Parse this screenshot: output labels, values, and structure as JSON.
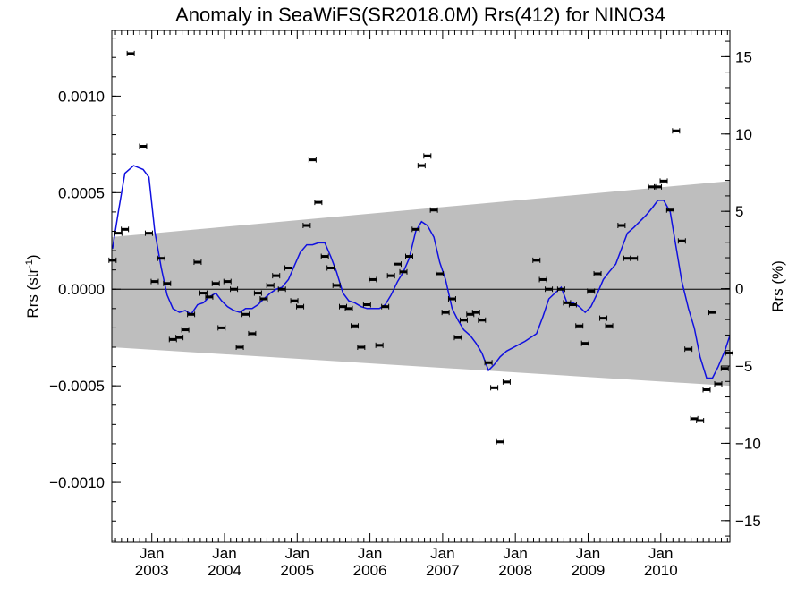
{
  "chart_data": {
    "type": "scatter",
    "title": "Anomaly in SeaWiFS(SR2018.0M) Rrs(412) for NINO34",
    "ylabel": "Rrs (str",
    "ylabel_sup": "-1",
    "ylabel_close": ")",
    "ylabel_right": "Rrs (%)",
    "xlim": [
      2002.45,
      2010.95
    ],
    "ylim": [
      -0.00131,
      0.00134
    ],
    "ylim_right": [
      -16.4,
      16.7
    ],
    "x_ticks": [
      {
        "value": 2003.0,
        "month": "Jan",
        "year": "2003"
      },
      {
        "value": 2004.0,
        "month": "Jan",
        "year": "2004"
      },
      {
        "value": 2005.0,
        "month": "Jan",
        "year": "2005"
      },
      {
        "value": 2006.0,
        "month": "Jan",
        "year": "2006"
      },
      {
        "value": 2007.0,
        "month": "Jan",
        "year": "2007"
      },
      {
        "value": 2008.0,
        "month": "Jan",
        "year": "2008"
      },
      {
        "value": 2009.0,
        "month": "Jan",
        "year": "2009"
      },
      {
        "value": 2010.0,
        "month": "Jan",
        "year": "2010"
      }
    ],
    "y_ticks": [
      {
        "value": 0.001,
        "label": "0.0010"
      },
      {
        "value": 0.0005,
        "label": "0.0005"
      },
      {
        "value": 0.0,
        "label": "0.0000"
      },
      {
        "value": -0.0005,
        "label": "−0.0005"
      },
      {
        "value": -0.001,
        "label": "−0.0010"
      }
    ],
    "y_ticks_right": [
      {
        "value": 15,
        "label": "15"
      },
      {
        "value": 10,
        "label": "10"
      },
      {
        "value": 5,
        "label": "5"
      },
      {
        "value": 0,
        "label": "0"
      },
      {
        "value": -5,
        "label": "−5"
      },
      {
        "value": -10,
        "label": "−10"
      },
      {
        "value": -15,
        "label": "−15"
      }
    ],
    "band": {
      "x": [
        2002.45,
        2010.95
      ],
      "upper": [
        0.00027,
        0.00056
      ],
      "lower": [
        -0.0003,
        -0.0005
      ],
      "color": "#bebebe"
    },
    "zero_line": 0.0,
    "points": [
      [
        2002.46,
        0.00015
      ],
      [
        2002.54,
        0.00029
      ],
      [
        2002.63,
        0.00031
      ],
      [
        2002.71,
        0.00122
      ],
      [
        2002.88,
        0.00074
      ],
      [
        2002.96,
        0.00029
      ],
      [
        2003.04,
        4e-05
      ],
      [
        2003.13,
        0.00016
      ],
      [
        2003.21,
        3e-05
      ],
      [
        2003.29,
        -0.00026
      ],
      [
        2003.38,
        -0.00025
      ],
      [
        2003.46,
        -0.00021
      ],
      [
        2003.54,
        -0.00013
      ],
      [
        2003.63,
        0.00014
      ],
      [
        2003.71,
        -2e-05
      ],
      [
        2003.79,
        -4e-05
      ],
      [
        2003.88,
        3e-05
      ],
      [
        2003.96,
        -0.0002
      ],
      [
        2004.04,
        4e-05
      ],
      [
        2004.13,
        0.0
      ],
      [
        2004.21,
        -0.0003
      ],
      [
        2004.29,
        -0.00013
      ],
      [
        2004.38,
        -0.00023
      ],
      [
        2004.46,
        -2e-05
      ],
      [
        2004.54,
        -5e-05
      ],
      [
        2004.63,
        2e-05
      ],
      [
        2004.71,
        7e-05
      ],
      [
        2004.79,
        0.0
      ],
      [
        2004.88,
        0.00011
      ],
      [
        2004.96,
        -6e-05
      ],
      [
        2005.04,
        -9e-05
      ],
      [
        2005.13,
        0.00033
      ],
      [
        2005.21,
        0.00067
      ],
      [
        2005.29,
        0.00045
      ],
      [
        2005.38,
        0.00017
      ],
      [
        2005.46,
        0.00011
      ],
      [
        2005.54,
        2e-05
      ],
      [
        2005.63,
        -9e-05
      ],
      [
        2005.71,
        -0.0001
      ],
      [
        2005.79,
        -0.00019
      ],
      [
        2005.88,
        -0.0003
      ],
      [
        2005.96,
        -8e-05
      ],
      [
        2006.04,
        5e-05
      ],
      [
        2006.13,
        -0.00029
      ],
      [
        2006.21,
        -9e-05
      ],
      [
        2006.29,
        7e-05
      ],
      [
        2006.38,
        0.00013
      ],
      [
        2006.46,
        9e-05
      ],
      [
        2006.54,
        0.00017
      ],
      [
        2006.63,
        0.00031
      ],
      [
        2006.71,
        0.00064
      ],
      [
        2006.79,
        0.00069
      ],
      [
        2006.88,
        0.00041
      ],
      [
        2006.96,
        8e-05
      ],
      [
        2007.04,
        -0.00012
      ],
      [
        2007.13,
        -5e-05
      ],
      [
        2007.21,
        -0.00025
      ],
      [
        2007.29,
        -0.00016
      ],
      [
        2007.38,
        -0.00013
      ],
      [
        2007.46,
        -0.00012
      ],
      [
        2007.54,
        -0.00016
      ],
      [
        2007.63,
        -0.00038
      ],
      [
        2007.71,
        -0.00051
      ],
      [
        2007.79,
        -0.00079
      ],
      [
        2007.88,
        -0.00048
      ],
      [
        2008.29,
        0.00015
      ],
      [
        2008.38,
        5e-05
      ],
      [
        2008.46,
        0.0
      ],
      [
        2008.63,
        0.0
      ],
      [
        2008.71,
        -7e-05
      ],
      [
        2008.79,
        -8e-05
      ],
      [
        2008.88,
        -0.00019
      ],
      [
        2008.96,
        -0.00028
      ],
      [
        2009.04,
        -1e-05
      ],
      [
        2009.13,
        8e-05
      ],
      [
        2009.21,
        -0.00015
      ],
      [
        2009.29,
        -0.00019
      ],
      [
        2009.46,
        0.00033
      ],
      [
        2009.54,
        0.00016
      ],
      [
        2009.63,
        0.00016
      ],
      [
        2009.88,
        0.00053
      ],
      [
        2009.96,
        0.00053
      ],
      [
        2010.04,
        0.00056
      ],
      [
        2010.13,
        0.00041
      ],
      [
        2010.21,
        0.00082
      ],
      [
        2010.29,
        0.00025
      ],
      [
        2010.38,
        -0.00031
      ],
      [
        2010.46,
        -0.00067
      ],
      [
        2010.54,
        -0.00068
      ],
      [
        2010.63,
        -0.00052
      ],
      [
        2010.71,
        -0.00012
      ],
      [
        2010.79,
        -0.00049
      ],
      [
        2010.88,
        -0.00041
      ],
      [
        2010.94,
        -0.00033
      ]
    ],
    "smooth": {
      "color": "#1010e0",
      "points": [
        [
          2002.46,
          0.00021
        ],
        [
          2002.54,
          0.0004
        ],
        [
          2002.63,
          0.0006
        ],
        [
          2002.75,
          0.00064
        ],
        [
          2002.88,
          0.00062
        ],
        [
          2002.96,
          0.00058
        ],
        [
          2003.04,
          0.0003
        ],
        [
          2003.13,
          0.00011
        ],
        [
          2003.21,
          -3e-05
        ],
        [
          2003.29,
          -0.0001
        ],
        [
          2003.38,
          -0.00012
        ],
        [
          2003.46,
          -0.00011
        ],
        [
          2003.54,
          -0.00013
        ],
        [
          2003.63,
          -8e-05
        ],
        [
          2003.71,
          -7e-05
        ],
        [
          2003.79,
          -4e-05
        ],
        [
          2003.88,
          -2e-05
        ],
        [
          2003.96,
          -6e-05
        ],
        [
          2004.04,
          -9e-05
        ],
        [
          2004.13,
          -0.00011
        ],
        [
          2004.21,
          -0.00012
        ],
        [
          2004.29,
          -0.0001
        ],
        [
          2004.38,
          -0.0001
        ],
        [
          2004.46,
          -8e-05
        ],
        [
          2004.54,
          -5e-05
        ],
        [
          2004.63,
          -2e-05
        ],
        [
          2004.71,
          0.0
        ],
        [
          2004.79,
          1e-05
        ],
        [
          2004.88,
          5e-05
        ],
        [
          2004.96,
          0.00012
        ],
        [
          2005.04,
          0.00019
        ],
        [
          2005.13,
          0.00023
        ],
        [
          2005.21,
          0.00023
        ],
        [
          2005.29,
          0.00024
        ],
        [
          2005.38,
          0.00024
        ],
        [
          2005.46,
          0.00017
        ],
        [
          2005.54,
          9e-05
        ],
        [
          2005.63,
          -2e-05
        ],
        [
          2005.71,
          -6e-05
        ],
        [
          2005.79,
          -7e-05
        ],
        [
          2005.88,
          -9e-05
        ],
        [
          2005.96,
          -0.0001
        ],
        [
          2006.04,
          -0.0001
        ],
        [
          2006.13,
          -0.0001
        ],
        [
          2006.21,
          -8e-05
        ],
        [
          2006.29,
          -3e-05
        ],
        [
          2006.38,
          4e-05
        ],
        [
          2006.46,
          9e-05
        ],
        [
          2006.54,
          0.00016
        ],
        [
          2006.63,
          0.0003
        ],
        [
          2006.71,
          0.00035
        ],
        [
          2006.79,
          0.00033
        ],
        [
          2006.88,
          0.00027
        ],
        [
          2006.96,
          0.00014
        ],
        [
          2007.04,
          5e-05
        ],
        [
          2007.13,
          -0.0001
        ],
        [
          2007.21,
          -0.00016
        ],
        [
          2007.29,
          -0.00021
        ],
        [
          2007.38,
          -0.00024
        ],
        [
          2007.46,
          -0.00028
        ],
        [
          2007.54,
          -0.00033
        ],
        [
          2007.63,
          -0.00042
        ],
        [
          2007.71,
          -0.00039
        ],
        [
          2007.79,
          -0.00035
        ],
        [
          2007.88,
          -0.00032
        ],
        [
          2008.13,
          -0.00027
        ],
        [
          2008.29,
          -0.00023
        ],
        [
          2008.38,
          -0.00014
        ],
        [
          2008.46,
          -5e-05
        ],
        [
          2008.63,
          1e-05
        ],
        [
          2008.71,
          -7e-05
        ],
        [
          2008.79,
          -7e-05
        ],
        [
          2008.88,
          -9e-05
        ],
        [
          2008.96,
          -0.00012
        ],
        [
          2009.04,
          -9e-05
        ],
        [
          2009.13,
          -2e-05
        ],
        [
          2009.21,
          5e-05
        ],
        [
          2009.29,
          9e-05
        ],
        [
          2009.38,
          0.00013
        ],
        [
          2009.46,
          0.00021
        ],
        [
          2009.54,
          0.00029
        ],
        [
          2009.63,
          0.00032
        ],
        [
          2009.71,
          0.00035
        ],
        [
          2009.79,
          0.00038
        ],
        [
          2009.88,
          0.00042
        ],
        [
          2009.96,
          0.00046
        ],
        [
          2010.04,
          0.00046
        ],
        [
          2010.13,
          0.0004
        ],
        [
          2010.21,
          0.00022
        ],
        [
          2010.29,
          4e-05
        ],
        [
          2010.38,
          -0.0001
        ],
        [
          2010.46,
          -0.0002
        ],
        [
          2010.54,
          -0.00035
        ],
        [
          2010.63,
          -0.00046
        ],
        [
          2010.71,
          -0.00046
        ],
        [
          2010.79,
          -0.0004
        ],
        [
          2010.88,
          -0.00032
        ],
        [
          2010.95,
          -0.00024
        ]
      ]
    }
  }
}
